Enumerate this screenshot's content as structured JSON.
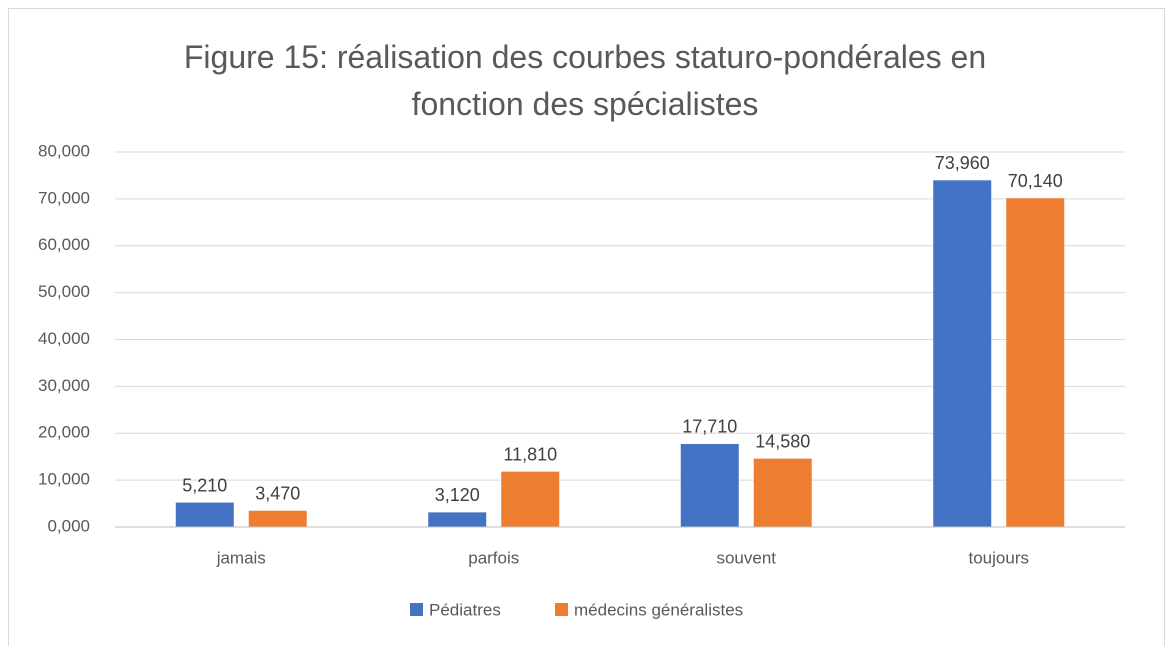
{
  "chart_data": {
    "type": "bar",
    "title": "Figure 15: réalisation des courbes staturo-pondérales en fonction des spécialistes",
    "categories": [
      "jamais",
      "parfois",
      "souvent",
      "toujours"
    ],
    "series": [
      {
        "name": "Pédiatres",
        "color": "#4472c4",
        "values": [
          5.21,
          3.12,
          17.71,
          73.96
        ],
        "value_labels": [
          "5,210",
          "3,120",
          "17,710",
          "73,960"
        ]
      },
      {
        "name": "médecins généralistes",
        "color": "#ed7d31",
        "values": [
          3.47,
          11.81,
          14.58,
          70.14
        ],
        "value_labels": [
          "3,470",
          "11,810",
          "14,580",
          "70,140"
        ]
      }
    ],
    "ylim": [
      0,
      80
    ],
    "yticks": [
      {
        "value": 0,
        "label": "0,000"
      },
      {
        "value": 10,
        "label": "10,000"
      },
      {
        "value": 20,
        "label": "20,000"
      },
      {
        "value": 30,
        "label": "30,000"
      },
      {
        "value": 40,
        "label": "40,000"
      },
      {
        "value": 50,
        "label": "50,000"
      },
      {
        "value": 60,
        "label": "60,000"
      },
      {
        "value": 70,
        "label": "70,000"
      },
      {
        "value": 80,
        "label": "80,000"
      }
    ],
    "grid": true,
    "legend": "bottom"
  }
}
